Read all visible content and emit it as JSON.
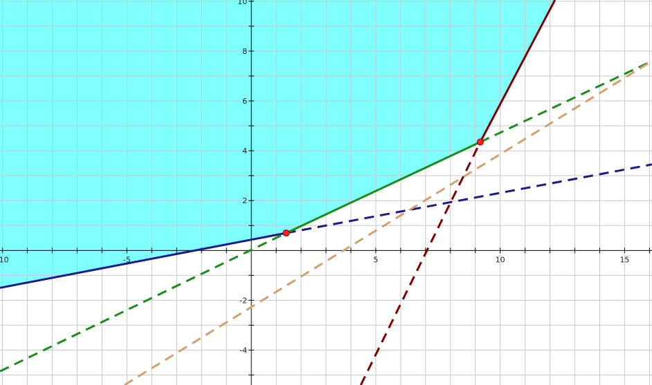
{
  "chart_data": {
    "type": "line",
    "title": "",
    "xlabel": "",
    "ylabel": "",
    "xlim": [
      -10.1,
      16.1
    ],
    "ylim": [
      -5.4,
      10.05
    ],
    "grid": true,
    "grid_step": 1,
    "x_ticks": [
      -10,
      -5,
      5,
      10,
      15
    ],
    "x_tick_labels": [
      "-10",
      "-5",
      "5",
      "10",
      "15"
    ],
    "y_ticks": [
      -4,
      -2,
      2,
      4,
      6,
      8,
      10
    ],
    "y_tick_labels": [
      "-4",
      "-2",
      "2",
      "4",
      "6",
      "8",
      "10"
    ],
    "colors": {
      "fill": "#80ffff",
      "blue": "#1a1a8c",
      "green": "#1a8c1a",
      "tan": "#d2a06e",
      "maroon": "#800000",
      "point": "#ff2020",
      "grid": "#c8c8c8",
      "axis": "#000000"
    },
    "feasible_region_boundary": [
      [
        -10.1,
        -1.5
      ],
      [
        1.4,
        0.7
      ],
      [
        9.2,
        4.35
      ],
      [
        12.2,
        10.05
      ]
    ],
    "series": [
      {
        "line": "blue",
        "style": "solid",
        "x": [
          -10.1,
          1.4
        ],
        "y": [
          -1.5,
          0.7
        ]
      },
      {
        "line": "blue",
        "style": "dashed",
        "x": [
          1.4,
          16.1
        ],
        "y": [
          0.7,
          3.45
        ]
      },
      {
        "line": "green",
        "style": "solid",
        "x": [
          1.4,
          9.2
        ],
        "y": [
          0.7,
          4.35
        ]
      },
      {
        "line": "green",
        "style": "dashed",
        "x": [
          -10.1,
          1.4
        ],
        "y": [
          -4.85,
          0.7
        ]
      },
      {
        "line": "green",
        "style": "dashed",
        "x": [
          9.2,
          16.1
        ],
        "y": [
          4.35,
          7.6
        ]
      },
      {
        "line": "tan",
        "style": "dashed",
        "x": [
          -5.1,
          16.1
        ],
        "y": [
          -5.4,
          7.6
        ]
      },
      {
        "line": "maroon",
        "style": "solid",
        "x": [
          9.2,
          12.2
        ],
        "y": [
          4.35,
          10.05
        ]
      },
      {
        "line": "maroon",
        "style": "dashed",
        "x": [
          4.4,
          9.2
        ],
        "y": [
          -5.4,
          4.35
        ]
      }
    ],
    "points": [
      {
        "x": 1.4,
        "y": 0.7
      },
      {
        "x": 9.2,
        "y": 4.35
      }
    ]
  }
}
